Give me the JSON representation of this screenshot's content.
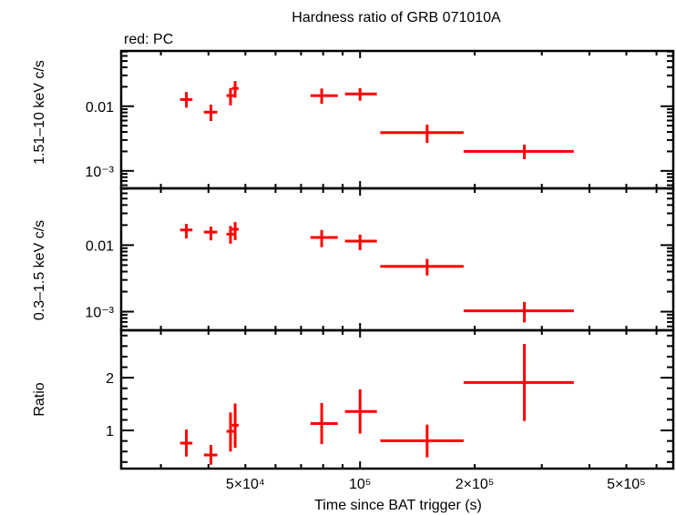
{
  "chart_data": {
    "type": "scatter",
    "title": "Hardness ratio of GRB 071010A",
    "subtitle": "red: PC",
    "xlabel": "Time since BAT trigger (s)",
    "xscale": "log",
    "xlim": [
      23600,
      664000
    ],
    "xticks": [
      {
        "value": 50000,
        "label": "5×10⁴"
      },
      {
        "value": 100000,
        "label": "10⁵"
      },
      {
        "value": 200000,
        "label": "2×10⁵"
      },
      {
        "value": 500000,
        "label": "5×10⁵"
      }
    ],
    "color": "#ff0000",
    "x": [
      35000,
      40600,
      45700,
      47000,
      79300,
      100000,
      150000,
      270000
    ],
    "xerr_lo": [
      33700,
      38900,
      44600,
      46100,
      74100,
      91300,
      113000,
      187000
    ],
    "xerr_hi": [
      36300,
      42200,
      47100,
      48000,
      87400,
      110700,
      187000,
      364000
    ],
    "panels": [
      {
        "ylabel": "1.51–10 keV c/s",
        "yscale": "log",
        "ylim": [
          0.000537,
          0.0716
        ],
        "yticks": [
          {
            "value": 0.01,
            "label": "0.01"
          },
          {
            "value": 0.001,
            "label": "10⁻³"
          }
        ],
        "y": [
          0.0127,
          0.0081,
          0.0146,
          0.0189,
          0.0146,
          0.0155,
          0.0039,
          0.002
        ],
        "yerr_lo": [
          0.0095,
          0.0059,
          0.0103,
          0.0136,
          0.0109,
          0.0122,
          0.0027,
          0.00152
        ],
        "yerr_hi": [
          0.0166,
          0.0106,
          0.0191,
          0.0245,
          0.0188,
          0.0191,
          0.0052,
          0.00255
        ]
      },
      {
        "ylabel": "0.3–1.5 keV c/s",
        "yscale": "log",
        "ylim": [
          0.000525,
          0.0713
        ],
        "yticks": [
          {
            "value": 0.01,
            "label": "0.01"
          },
          {
            "value": 0.001,
            "label": "10⁻³"
          }
        ],
        "y": [
          0.0169,
          0.0157,
          0.0146,
          0.0173,
          0.013,
          0.0115,
          0.0048,
          0.00103
        ],
        "yerr_lo": [
          0.0126,
          0.0118,
          0.0105,
          0.0119,
          0.0093,
          0.0084,
          0.0035,
          0.00069
        ],
        "yerr_hi": [
          0.0208,
          0.019,
          0.0194,
          0.0222,
          0.0169,
          0.0144,
          0.0062,
          0.0014
        ]
      },
      {
        "ylabel": "Ratio",
        "yscale": "linear",
        "ylim": [
          0.276,
          2.9
        ],
        "yticks": [
          {
            "value": 1,
            "label": "1"
          },
          {
            "value": 2,
            "label": "2"
          }
        ],
        "y": [
          0.759,
          0.534,
          0.983,
          1.098,
          1.13,
          1.36,
          0.805,
          1.91
        ],
        "yerr_lo": [
          0.505,
          0.35,
          0.6,
          0.67,
          0.74,
          0.94,
          0.49,
          1.18
        ],
        "yerr_hi": [
          1.017,
          0.724,
          1.34,
          1.51,
          1.52,
          1.78,
          1.11,
          2.64
        ]
      }
    ]
  }
}
